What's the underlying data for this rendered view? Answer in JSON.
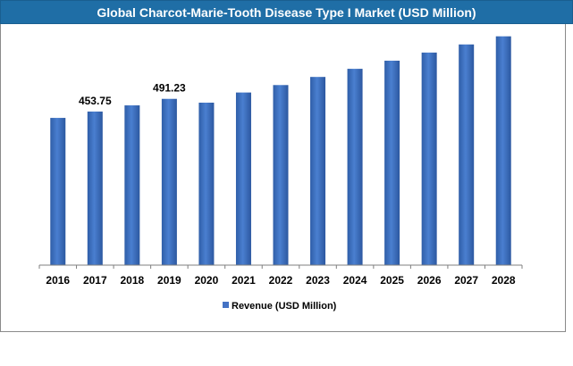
{
  "chart_data": {
    "type": "bar",
    "title": "Global  Charcot-Marie-Tooth Disease Type I Market (USD Million)",
    "categories": [
      "2016",
      "2017",
      "2018",
      "2019",
      "2020",
      "2021",
      "2022",
      "2023",
      "2024",
      "2025",
      "2026",
      "2027",
      "2028"
    ],
    "series": [
      {
        "name": "Revenue (USD Million)",
        "values": [
          435,
          453.75,
          472,
          491.23,
          480,
          510,
          532,
          556,
          580,
          604,
          628,
          652,
          676
        ],
        "color": "#4472c4"
      }
    ],
    "data_labels": [
      {
        "category": "2017",
        "text": "453.75"
      },
      {
        "category": "2019",
        "text": "491.23"
      }
    ],
    "ylim": [
      0,
      720
    ],
    "grid": false,
    "legend_position": "bottom"
  }
}
